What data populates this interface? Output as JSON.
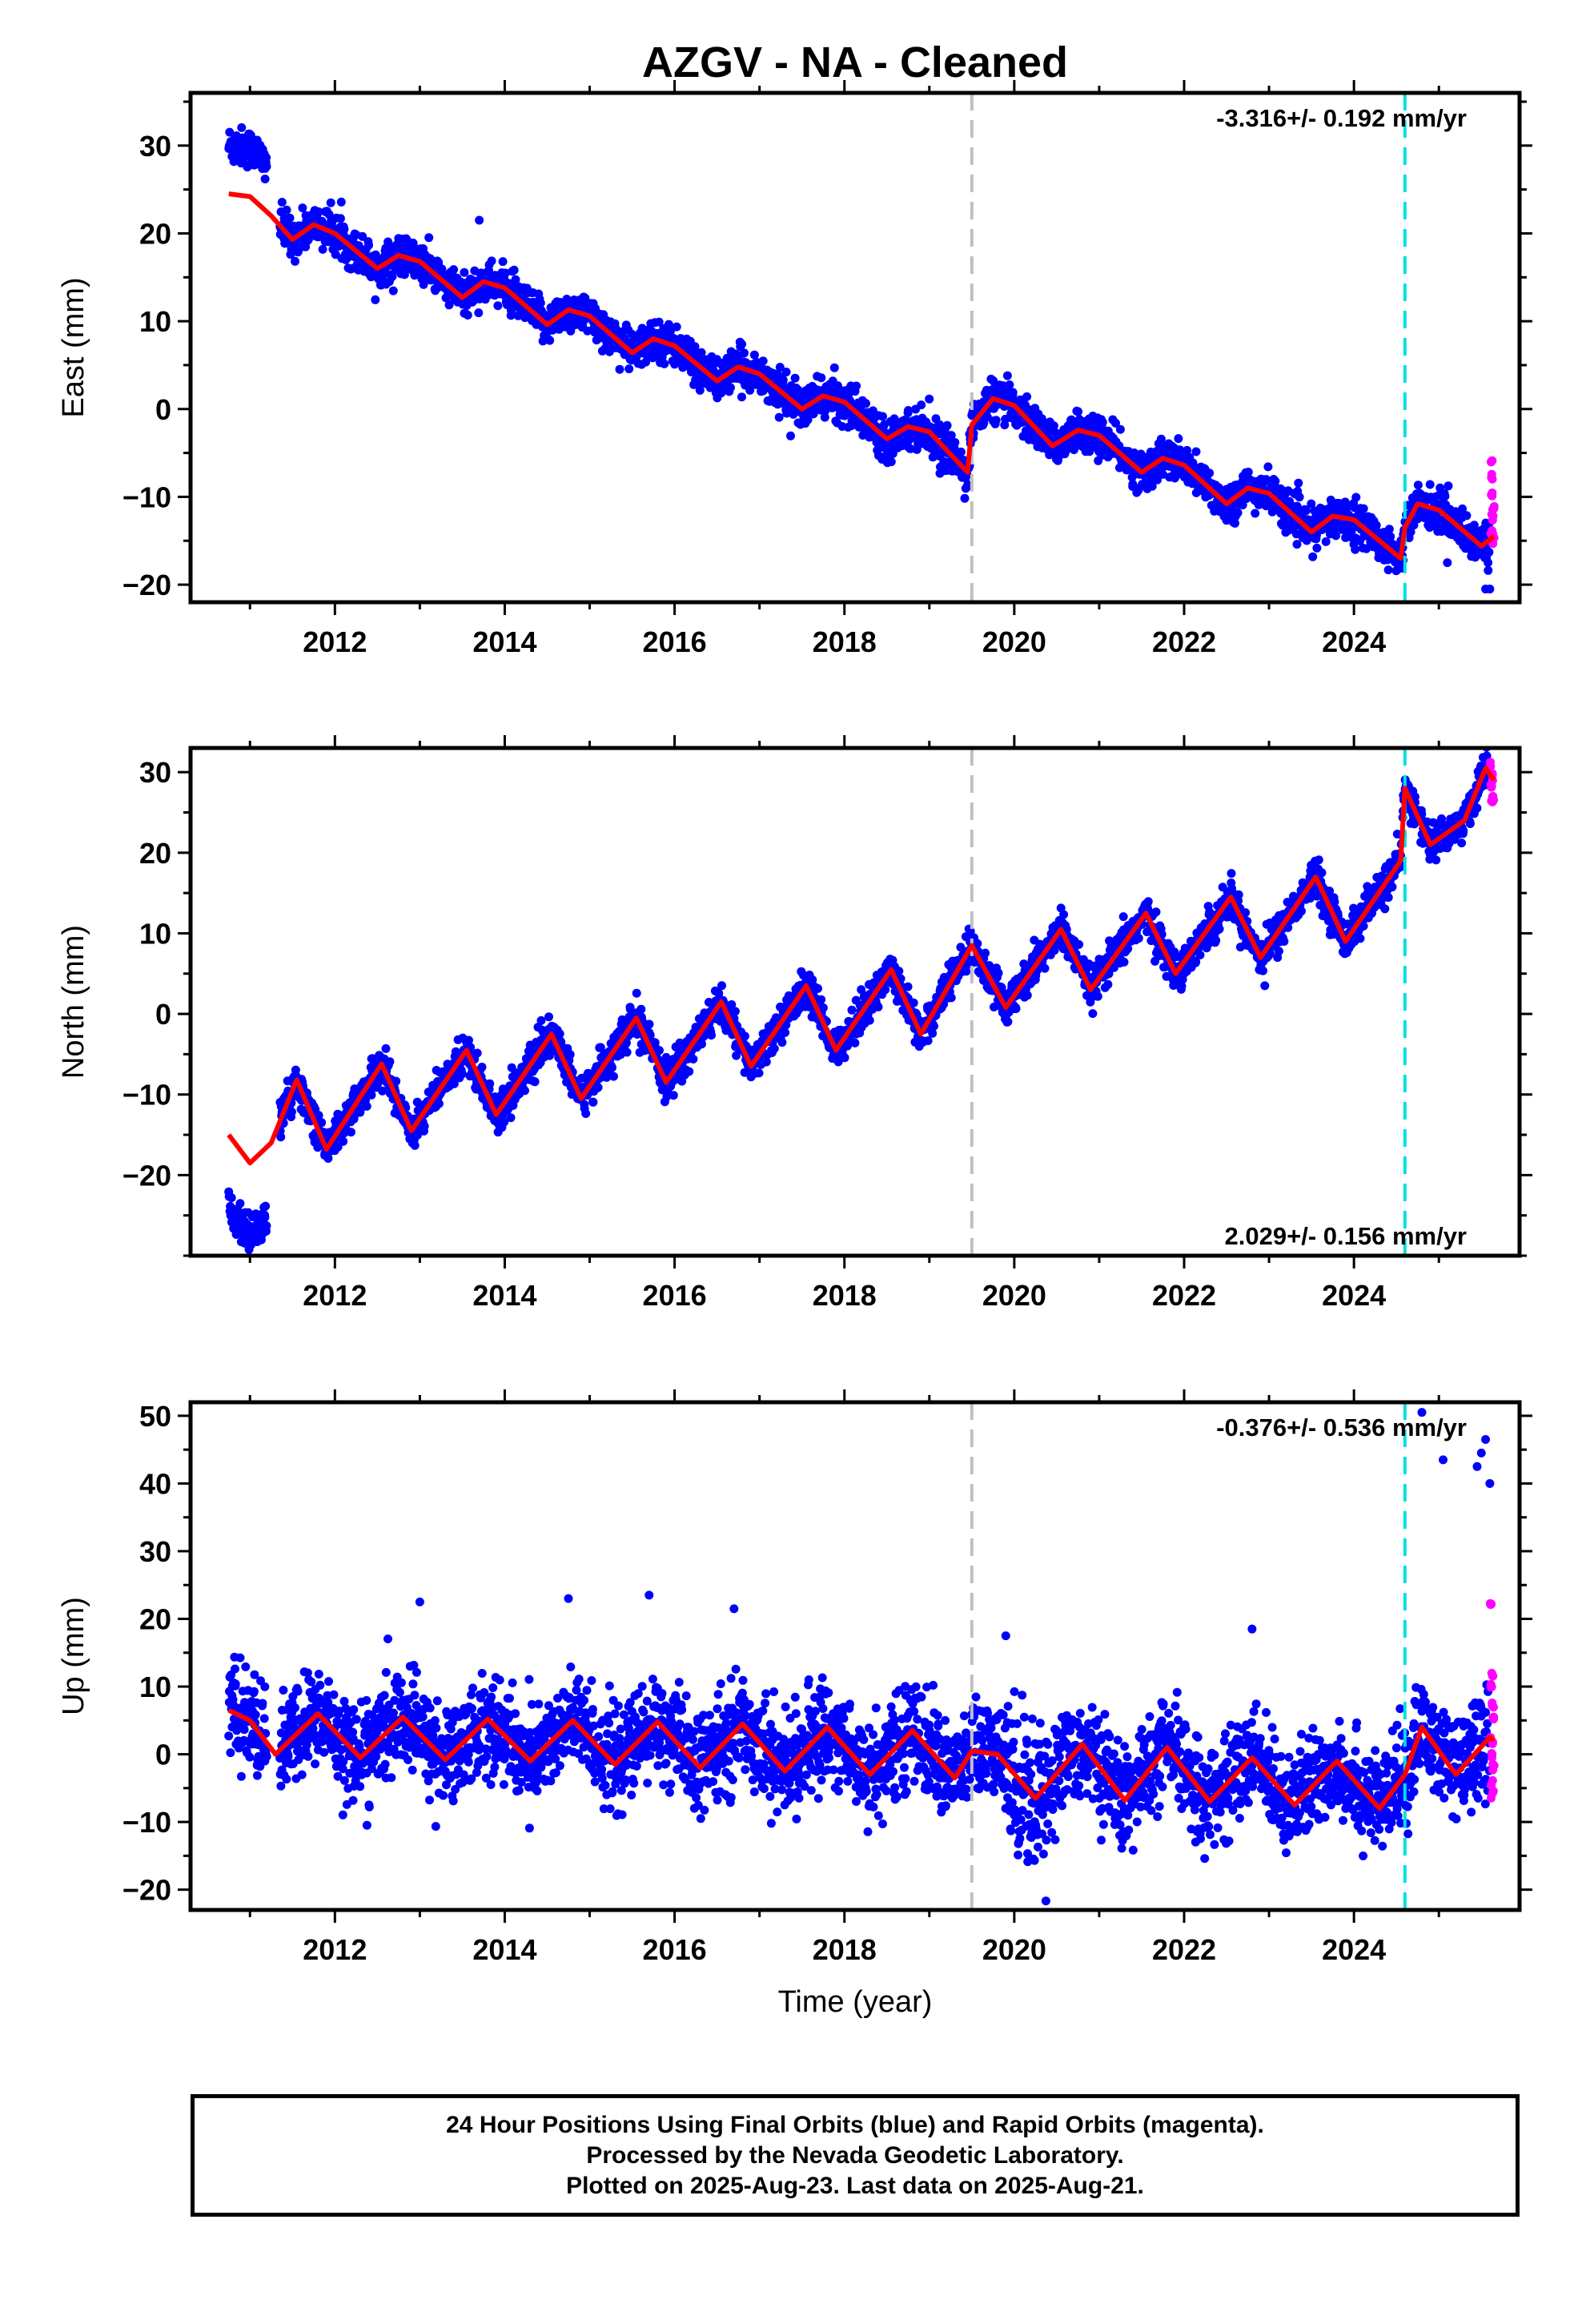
{
  "title": "AZGV  - NA - Cleaned",
  "xlabel": "Time (year)",
  "colors": {
    "final": "#0000ff",
    "rapid": "#ff00ff",
    "model": "#ff0000",
    "break_grey": "#c0c0c0",
    "break_cyan": "#00e0e0"
  },
  "footer": {
    "line1": "24 Hour Positions Using Final Orbits (blue) and Rapid Orbits (magenta).",
    "line2": "Processed by the Nevada Geodetic Laboratory.",
    "line3": "Plotted on 2025-Aug-23. Last data on 2025-Aug-21."
  },
  "chart_data": [
    {
      "type": "scatter",
      "component": "east",
      "ylabel": "East (mm)",
      "rate_text": "-3.316+/- 0.192 mm/yr",
      "rate_position": "top-right",
      "xlim": [
        2010.3,
        2025.95
      ],
      "ylim": [
        -22,
        36
      ],
      "xticks": [
        2012,
        2014,
        2016,
        2018,
        2020,
        2022,
        2024
      ],
      "yticks": [
        -20,
        -10,
        0,
        10,
        20,
        30
      ],
      "breaks": [
        {
          "x": 2019.5,
          "color": "grey"
        },
        {
          "x": 2024.6,
          "color": "cyan"
        }
      ],
      "trend": {
        "rate": -3.316,
        "amplitude": 1.9,
        "phase_year": 2011.55
      },
      "early": {
        "from": 2010.75,
        "to": 2011.2,
        "offset": 5.5
      },
      "model": [
        [
          2010.75,
          24.5
        ],
        [
          2011.0,
          24.2
        ],
        [
          2011.25,
          22.0
        ],
        [
          2011.5,
          19.3
        ],
        [
          2011.75,
          21.0
        ],
        [
          2012.0,
          20.0
        ],
        [
          2012.5,
          16.0
        ],
        [
          2012.75,
          17.5
        ],
        [
          2013.0,
          16.8
        ],
        [
          2013.5,
          12.7
        ],
        [
          2013.75,
          14.5
        ],
        [
          2014.0,
          13.8
        ],
        [
          2014.5,
          9.6
        ],
        [
          2014.75,
          11.3
        ],
        [
          2015.0,
          10.6
        ],
        [
          2015.5,
          6.4
        ],
        [
          2015.75,
          8.0
        ],
        [
          2016.0,
          7.2
        ],
        [
          2016.5,
          3.2
        ],
        [
          2016.75,
          4.8
        ],
        [
          2017.0,
          4.0
        ],
        [
          2017.5,
          0.0
        ],
        [
          2017.75,
          1.5
        ],
        [
          2018.0,
          0.8
        ],
        [
          2018.5,
          -3.4
        ],
        [
          2018.75,
          -2.0
        ],
        [
          2019.0,
          -2.6
        ],
        [
          2019.45,
          -7.2
        ],
        [
          2019.5,
          -1.8
        ],
        [
          2019.75,
          1.2
        ],
        [
          2020.0,
          0.4
        ],
        [
          2020.45,
          -4.2
        ],
        [
          2020.75,
          -2.4
        ],
        [
          2021.0,
          -3.0
        ],
        [
          2021.5,
          -7.2
        ],
        [
          2021.75,
          -5.6
        ],
        [
          2022.0,
          -6.4
        ],
        [
          2022.5,
          -10.8
        ],
        [
          2022.75,
          -9.0
        ],
        [
          2023.0,
          -9.6
        ],
        [
          2023.5,
          -14.0
        ],
        [
          2023.75,
          -12.2
        ],
        [
          2024.0,
          -12.6
        ],
        [
          2024.55,
          -17.0
        ],
        [
          2024.6,
          -13.5
        ],
        [
          2024.75,
          -10.8
        ],
        [
          2025.0,
          -11.5
        ],
        [
          2025.5,
          -15.6
        ],
        [
          2025.65,
          -14.5
        ]
      ],
      "rapid": [
        [
          2025.62,
          -6.0
        ],
        [
          2025.63,
          -8.0
        ],
        [
          2025.62,
          -10.0
        ],
        [
          2025.64,
          -11.0
        ],
        [
          2025.63,
          -12.5
        ],
        [
          2025.62,
          -14.0
        ],
        [
          2025.64,
          -15.0
        ]
      ],
      "outliers": [
        [
          2025.55,
          -20.5
        ],
        [
          2025.6,
          -20.5
        ],
        [
          2013.7,
          21.5
        ],
        [
          2025.1,
          -17.5
        ]
      ]
    },
    {
      "type": "scatter",
      "component": "north",
      "ylabel": "North (mm)",
      "rate_text": "2.029+/- 0.156 mm/yr",
      "rate_position": "bottom-right",
      "xlim": [
        2010.3,
        2025.95
      ],
      "ylim": [
        -30,
        33
      ],
      "xticks": [
        2012,
        2014,
        2016,
        2018,
        2020,
        2022,
        2024
      ],
      "yticks": [
        -20,
        -10,
        0,
        10,
        20,
        30
      ],
      "breaks": [
        {
          "x": 2019.5,
          "color": "grey"
        },
        {
          "x": 2024.6,
          "color": "cyan"
        }
      ],
      "trend": {
        "rate": 2.029,
        "amplitude": 3.8,
        "phase_year": 2011.55
      },
      "early": {
        "from": 2010.75,
        "to": 2011.2,
        "offset": -9.0
      },
      "model": [
        [
          2010.75,
          -15.0
        ],
        [
          2011.0,
          -18.5
        ],
        [
          2011.25,
          -16.0
        ],
        [
          2011.55,
          -8.2
        ],
        [
          2011.9,
          -16.8
        ],
        [
          2012.55,
          -6.2
        ],
        [
          2012.9,
          -14.5
        ],
        [
          2013.55,
          -4.5
        ],
        [
          2013.9,
          -12.5
        ],
        [
          2014.55,
          -2.5
        ],
        [
          2014.9,
          -10.5
        ],
        [
          2015.55,
          -0.5
        ],
        [
          2015.9,
          -8.5
        ],
        [
          2016.55,
          1.5
        ],
        [
          2016.9,
          -6.5
        ],
        [
          2017.55,
          3.5
        ],
        [
          2017.9,
          -4.5
        ],
        [
          2018.55,
          5.5
        ],
        [
          2018.9,
          -2.5
        ],
        [
          2019.5,
          8.5
        ],
        [
          2019.9,
          0.8
        ],
        [
          2020.55,
          10.5
        ],
        [
          2020.9,
          3.0
        ],
        [
          2021.55,
          12.5
        ],
        [
          2021.9,
          5.0
        ],
        [
          2022.55,
          14.5
        ],
        [
          2022.9,
          7.0
        ],
        [
          2023.55,
          17.0
        ],
        [
          2023.9,
          9.0
        ],
        [
          2024.55,
          19.0
        ],
        [
          2024.6,
          28.0
        ],
        [
          2024.9,
          21.0
        ],
        [
          2025.3,
          24.0
        ],
        [
          2025.55,
          30.5
        ],
        [
          2025.65,
          29.0
        ]
      ],
      "rapid": [
        [
          2025.62,
          31.0
        ],
        [
          2025.63,
          29.5
        ],
        [
          2025.62,
          28.0
        ],
        [
          2025.64,
          27.0
        ],
        [
          2025.63,
          26.5
        ]
      ],
      "outliers": [
        [
          2022.95,
          3.5
        ],
        [
          2023.1,
          7.0
        ]
      ]
    },
    {
      "type": "scatter",
      "component": "up",
      "ylabel": "Up (mm)",
      "rate_text": "-0.376+/- 0.536 mm/yr",
      "rate_position": "top-right",
      "xlim": [
        2010.3,
        2025.95
      ],
      "ylim": [
        -23,
        52
      ],
      "xticks": [
        2012,
        2014,
        2016,
        2018,
        2020,
        2022,
        2024
      ],
      "yticks": [
        -20,
        -10,
        0,
        10,
        20,
        30,
        40,
        50
      ],
      "breaks": [
        {
          "x": 2019.5,
          "color": "grey"
        },
        {
          "x": 2024.6,
          "color": "cyan"
        }
      ],
      "trend": {
        "rate": -0.376,
        "amplitude": 3.5,
        "phase_year": 2011.8
      },
      "early": {
        "from": 2010.75,
        "to": 2011.2,
        "offset": 0
      },
      "model": [
        [
          2010.75,
          6.5
        ],
        [
          2011.0,
          5.0
        ],
        [
          2011.3,
          0.0
        ],
        [
          2011.8,
          6.0
        ],
        [
          2012.3,
          -0.5
        ],
        [
          2012.8,
          5.5
        ],
        [
          2013.3,
          -0.8
        ],
        [
          2013.8,
          5.2
        ],
        [
          2014.3,
          -1.0
        ],
        [
          2014.8,
          5.0
        ],
        [
          2015.3,
          -1.5
        ],
        [
          2015.8,
          4.8
        ],
        [
          2016.3,
          -2.0
        ],
        [
          2016.8,
          4.5
        ],
        [
          2017.3,
          -2.5
        ],
        [
          2017.8,
          4.0
        ],
        [
          2018.3,
          -3.0
        ],
        [
          2018.8,
          3.5
        ],
        [
          2019.3,
          -3.5
        ],
        [
          2019.5,
          0.5
        ],
        [
          2019.8,
          0.0
        ],
        [
          2020.25,
          -6.5
        ],
        [
          2020.8,
          1.5
        ],
        [
          2021.3,
          -6.8
        ],
        [
          2021.8,
          1.0
        ],
        [
          2022.3,
          -7.0
        ],
        [
          2022.8,
          -0.5
        ],
        [
          2023.3,
          -7.5
        ],
        [
          2023.8,
          -1.0
        ],
        [
          2024.3,
          -8.0
        ],
        [
          2024.6,
          -3.0
        ],
        [
          2024.8,
          4.0
        ],
        [
          2025.2,
          -3.0
        ],
        [
          2025.6,
          2.5
        ],
        [
          2025.65,
          2.0
        ]
      ],
      "rapid": [
        [
          2025.62,
          22.0
        ],
        [
          2025.63,
          12.0
        ],
        [
          2025.62,
          10.5
        ],
        [
          2025.63,
          7.0
        ],
        [
          2025.64,
          5.0
        ],
        [
          2025.62,
          2.0
        ],
        [
          2025.63,
          0.0
        ],
        [
          2025.64,
          -2.0
        ],
        [
          2025.62,
          -4.0
        ],
        [
          2025.63,
          -6.0
        ]
      ],
      "outliers": [
        [
          2024.8,
          50.5
        ],
        [
          2025.05,
          43.5
        ],
        [
          2025.45,
          42.5
        ],
        [
          2025.55,
          46.5
        ],
        [
          2025.6,
          40.0
        ],
        [
          2025.5,
          44.5
        ],
        [
          2013.0,
          22.5
        ],
        [
          2014.75,
          23.0
        ],
        [
          2015.7,
          23.5
        ],
        [
          2016.7,
          21.5
        ],
        [
          2022.8,
          18.5
        ],
        [
          2019.9,
          17.5
        ]
      ]
    }
  ]
}
